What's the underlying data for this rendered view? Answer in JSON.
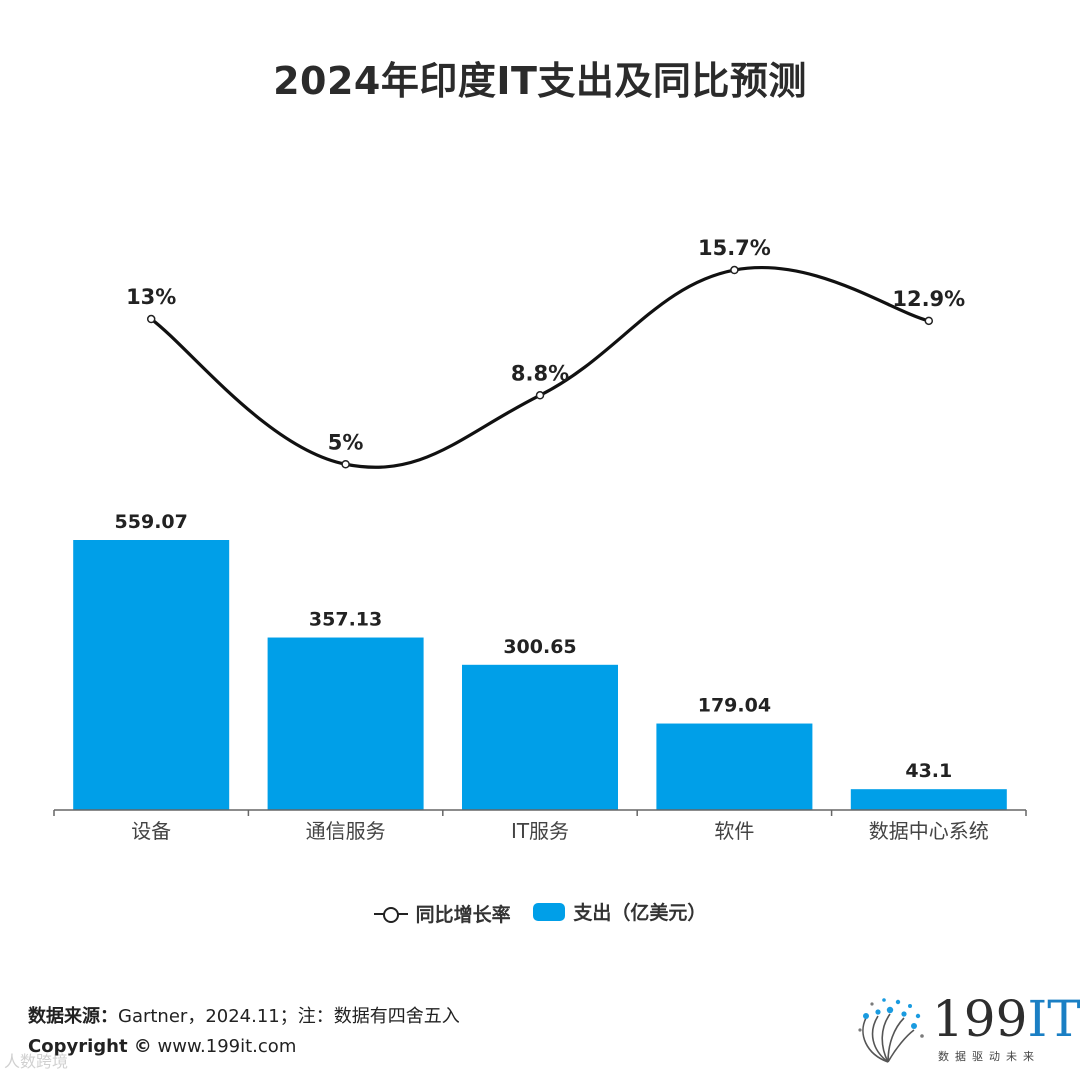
{
  "chart_data": {
    "type": "bar+line",
    "title": "2024年印度IT支出及同比预测",
    "categories": [
      "设备",
      "通信服务",
      "IT服务",
      "软件",
      "数据中心系统"
    ],
    "series": [
      {
        "name": "同比增长率",
        "type": "line",
        "values": [
          13,
          5,
          8.8,
          15.7,
          12.9
        ],
        "labels": [
          "13%",
          "5%",
          "8.8%",
          "15.7%",
          "12.9%"
        ],
        "color": "#111111"
      },
      {
        "name": "支出（亿美元）",
        "type": "bar",
        "values": [
          559.07,
          357.13,
          300.65,
          179.04,
          43.1
        ],
        "labels": [
          "559.07",
          "357.13",
          "300.65",
          "179.04",
          "43.1"
        ],
        "color": "#009fe8"
      }
    ],
    "legend_position": "bottom",
    "grid": false
  },
  "legend": {
    "line_label": "同比增长率",
    "bar_label": "支出（亿美元）"
  },
  "footer": {
    "source_label": "数据来源：",
    "source_text": "Gartner，2024.11；注：数据有四舍五入",
    "copyright_label": "Copyright ©",
    "copyright_text": " www.199it.com"
  },
  "logo": {
    "main": "199",
    "accent": "IT",
    "tagline": "数据驱动未来"
  },
  "watermark": "人数跨境",
  "colors": {
    "bar": "#009fe8",
    "line": "#111111",
    "title": "#2b2b2b"
  }
}
